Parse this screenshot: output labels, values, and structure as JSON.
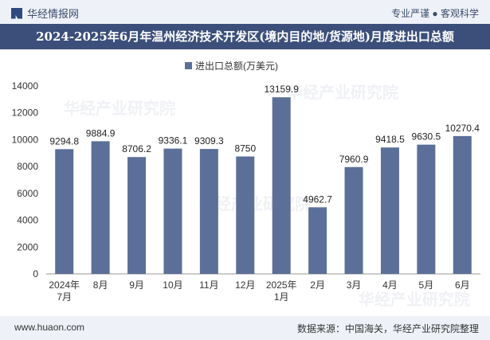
{
  "header": {
    "brand": "华经情报网",
    "slogan": "专业严谨 ● 客观科学"
  },
  "chart_data": {
    "type": "bar",
    "title": "2024-2025年6月年温州经济技术开发区(境内目的地/货源地)月度进出口总额",
    "categories": [
      "2024年\n7月",
      "8月",
      "9月",
      "10月",
      "11月",
      "12月",
      "2025年\n1月",
      "2月",
      "3月",
      "4月",
      "5月",
      "6月"
    ],
    "series": [
      {
        "name": "进出口总额(万美元)",
        "values": [
          9294.8,
          9884.9,
          8706.2,
          9336.1,
          9309.3,
          8750,
          13159.9,
          4962.7,
          7960.9,
          9418.5,
          9630.5,
          10270.4
        ]
      }
    ],
    "value_labels": [
      "9294.8",
      "9884.9",
      "8706.2",
      "9336.1",
      "9309.3",
      "8750",
      "13159.9",
      "4962.7",
      "7960.9",
      "9418.5",
      "9630.5",
      "10270.4"
    ],
    "yticks": [
      0,
      2000,
      4000,
      6000,
      8000,
      10000,
      12000,
      14000
    ],
    "ylim": [
      0,
      14000
    ],
    "legend_position": "top-center",
    "bar_color": "#5b6f98"
  },
  "watermark": "华经产业研究院",
  "footer": {
    "url": "www.huaon.com",
    "source": "数据来源：中国海关，华经产业研究院整理"
  }
}
